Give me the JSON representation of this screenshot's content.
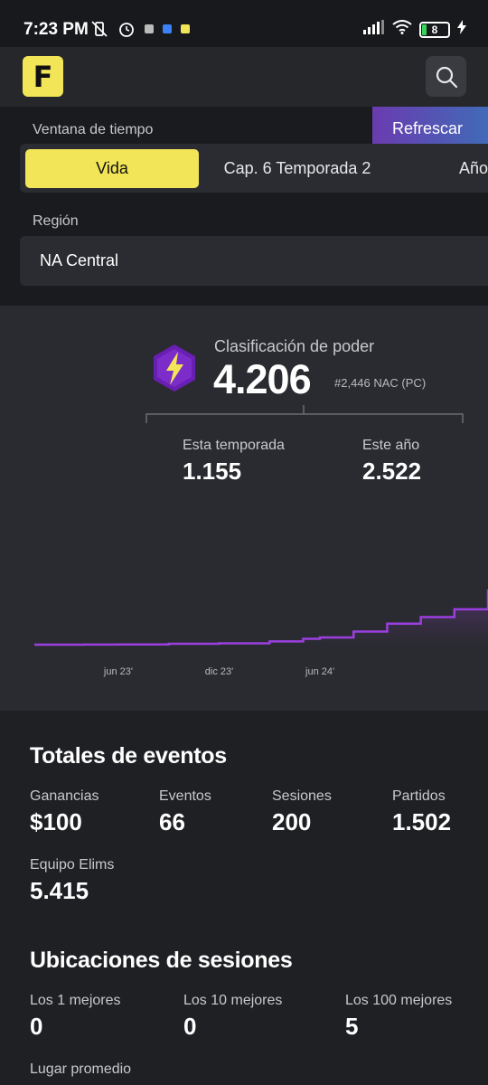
{
  "status_bar": {
    "time": "7:23 PM",
    "battery_level": "8",
    "icons": [
      "mute-vibrate-icon",
      "alarm-icon",
      "app-notification-icon",
      "signal-icon",
      "wifi-icon",
      "battery-icon",
      "charging-icon"
    ]
  },
  "header": {
    "logo_letter": "F",
    "logo_color": "#f2e558"
  },
  "filters": {
    "time_window_label": "Ventana de tiempo",
    "refresh_label": "Refrescar",
    "tabs": [
      {
        "label": "Vida",
        "active": true
      },
      {
        "label": "Cap. 6 Temporada 2",
        "active": false
      },
      {
        "label": "Año",
        "active": false
      }
    ],
    "region_label": "Región",
    "region_value": "NA Central"
  },
  "power": {
    "label": "Clasificación de poder",
    "value": "4.206",
    "rank": "#2,446 NAC (PC)",
    "this_season_label": "Esta temporada",
    "this_season_value": "1.155",
    "this_year_label": "Este año",
    "this_year_value": "2.522"
  },
  "chart_data": {
    "type": "area",
    "x": [
      "2023-01",
      "2023-04",
      "2023-06",
      "2023-09",
      "2023-12",
      "2024-03",
      "2024-05",
      "2024-06",
      "2024-08",
      "2024-10",
      "2024-12",
      "2025-02",
      "2025-04"
    ],
    "values": [
      0,
      5,
      20,
      70,
      100,
      250,
      450,
      550,
      1000,
      1600,
      2100,
      2700,
      4206
    ],
    "tick_labels": [
      "jun 23'",
      "dic 23'",
      "jun 24'"
    ],
    "line_color": "#9b3fe0",
    "grid": false,
    "xlabel": "",
    "ylabel": ""
  },
  "event_totals": {
    "title": "Totales de eventos",
    "metrics": [
      {
        "label": "Ganancias",
        "value": "$100"
      },
      {
        "label": "Eventos",
        "value": "66"
      },
      {
        "label": "Sesiones",
        "value": "200"
      },
      {
        "label": "Partidos",
        "value": "1.502"
      },
      {
        "label": "Equipo Elims",
        "value": "5.415"
      }
    ]
  },
  "session_placements": {
    "title": "Ubicaciones de sesiones",
    "metrics": [
      {
        "label": "Los 1 mejores",
        "value": "0"
      },
      {
        "label": "Los 10 mejores",
        "value": "0"
      },
      {
        "label": "Los 100 mejores",
        "value": "5"
      }
    ],
    "avg_label": "Lugar promedio"
  }
}
